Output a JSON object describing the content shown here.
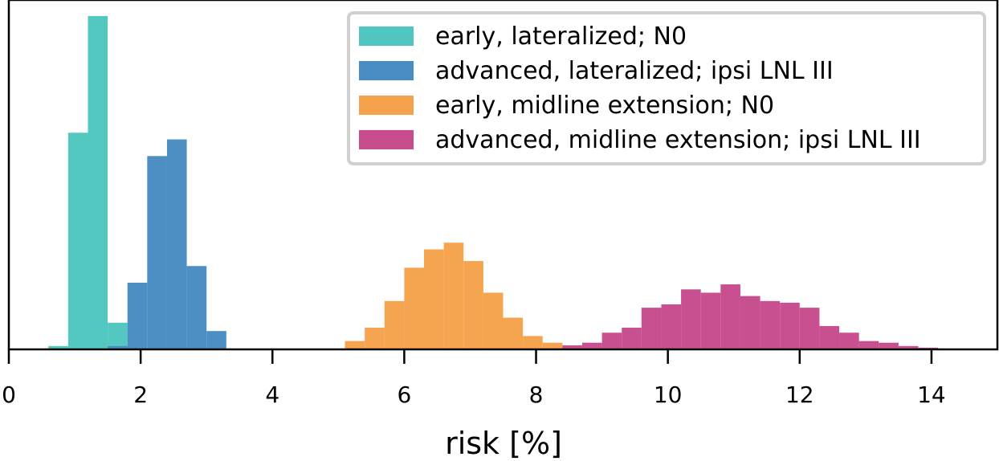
{
  "chart_data": {
    "type": "bar",
    "subtype": "histogram",
    "xlabel": "risk [%]",
    "ylabel": "",
    "xlim": [
      0,
      15
    ],
    "ylim": [
      0,
      1.0
    ],
    "x_ticks": [
      "0",
      "2",
      "4",
      "6",
      "8",
      "10",
      "12",
      "14"
    ],
    "y_ticks_shown": false,
    "grid": false,
    "legend_position": "top-right",
    "bin_width": 0.3,
    "colors": {
      "early_lateralized": "#4fc7c0",
      "advanced_lateralized": "#4a8dc2",
      "early_midline": "#f5a24d",
      "advanced_midline": "#c74c8e"
    },
    "series": [
      {
        "name": "early, lateralized; N0",
        "color": "#4fc7c0",
        "bin_starts": [
          0.6,
          0.9,
          1.2,
          1.5
        ],
        "values": [
          0.01,
          0.65,
          1.0,
          0.08
        ]
      },
      {
        "name": "advanced, lateralized; ipsi LNL III",
        "color": "#4a8dc2",
        "bin_starts": [
          1.5,
          1.8,
          2.1,
          2.4,
          2.7,
          3.0
        ],
        "values": [
          0.01,
          0.2,
          0.58,
          0.63,
          0.25,
          0.055
        ]
      },
      {
        "name": "early, midline extension; N0",
        "color": "#f5a24d",
        "bin_starts": [
          5.1,
          5.4,
          5.7,
          6.0,
          6.3,
          6.6,
          6.9,
          7.2,
          7.5,
          7.8,
          8.1
        ],
        "values": [
          0.025,
          0.065,
          0.145,
          0.245,
          0.3,
          0.32,
          0.265,
          0.17,
          0.095,
          0.04,
          0.02
        ]
      },
      {
        "name": "advanced, midline extension; ipsi LNL III",
        "color": "#c74c8e",
        "bin_starts": [
          8.4,
          8.7,
          9.0,
          9.3,
          9.6,
          9.9,
          10.2,
          10.5,
          10.8,
          11.1,
          11.4,
          11.7,
          12.0,
          12.3,
          12.6,
          12.9,
          13.2,
          13.5,
          13.8
        ],
        "values": [
          0.012,
          0.02,
          0.05,
          0.065,
          0.125,
          0.135,
          0.18,
          0.17,
          0.195,
          0.16,
          0.145,
          0.14,
          0.125,
          0.07,
          0.05,
          0.025,
          0.02,
          0.01,
          0.005
        ]
      }
    ]
  }
}
